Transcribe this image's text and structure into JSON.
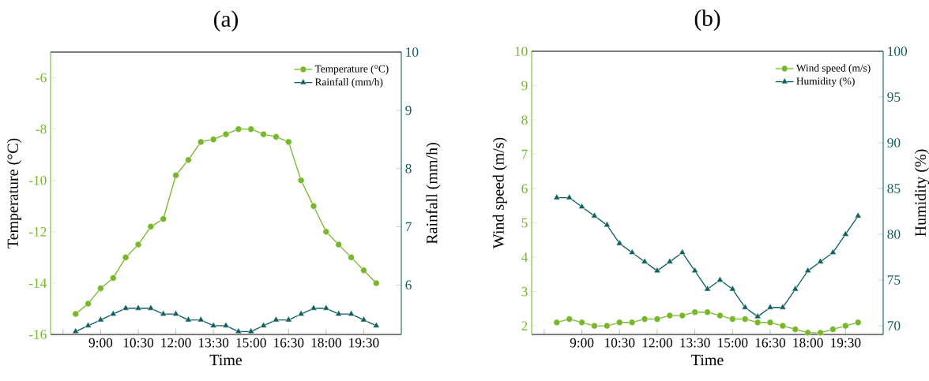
{
  "chart_data": [
    {
      "type": "line",
      "title": "(a)",
      "xlabel": "Time",
      "ylabel": "Temperature (°C)",
      "y2label": "Rainfall (mm/h)",
      "x": [
        8,
        8.5,
        9,
        9.5,
        10,
        10.5,
        11,
        11.5,
        12,
        12.5,
        13,
        13.5,
        14,
        14.5,
        15,
        15.5,
        16,
        16.5,
        17,
        17.5,
        18,
        18.5,
        19,
        19.5,
        20
      ],
      "xlim": [
        7,
        21
      ],
      "xticks": [
        {
          "value": 7.5,
          "label": null
        },
        {
          "value": 9,
          "label": "9:00"
        },
        {
          "value": 10.5,
          "label": "10:30"
        },
        {
          "value": 12,
          "label": "12:00"
        },
        {
          "value": 13.5,
          "label": "13:30"
        },
        {
          "value": 15,
          "label": "15:00"
        },
        {
          "value": 16.5,
          "label": "16:30"
        },
        {
          "value": 18,
          "label": "18:00"
        },
        {
          "value": 19.5,
          "label": "19:30"
        }
      ],
      "ylim": [
        -16,
        -5
      ],
      "yticks": [
        -16,
        -14,
        -12,
        -10,
        -8,
        -6
      ],
      "y2lim": [
        5.15,
        10
      ],
      "y2ticks": [
        6,
        7,
        8,
        9,
        10
      ],
      "legend": "top right",
      "grid": false,
      "series": [
        {
          "name": "Temperature (°C)",
          "color": "#76b82a",
          "marker": "circle",
          "values": [
            -15.2,
            -14.8,
            -14.2,
            -13.8,
            -13.0,
            -12.5,
            -11.8,
            -11.5,
            -9.8,
            -9.2,
            -8.5,
            -8.4,
            -8.2,
            -8.0,
            -8.0,
            -8.2,
            -8.3,
            -8.5,
            -10.0,
            -11.0,
            -12.0,
            -12.5,
            -13.0,
            -13.5,
            -14.0
          ]
        },
        {
          "name": "Rainfall (mm/h)",
          "color": "#0f5f5f",
          "marker": "triangle",
          "axis": "y2",
          "values": [
            5.2,
            5.3,
            5.4,
            5.5,
            5.6,
            5.6,
            5.6,
            5.5,
            5.5,
            5.4,
            5.4,
            5.3,
            5.3,
            5.2,
            5.2,
            5.3,
            5.4,
            5.4,
            5.5,
            5.6,
            5.6,
            5.5,
            5.5,
            5.4,
            5.3
          ]
        }
      ]
    },
    {
      "type": "line",
      "title": "(b)",
      "xlabel": "Time",
      "ylabel": "Wind speed (m/s)",
      "y2label": "Humidity (%)",
      "x": [
        8,
        8.5,
        9,
        9.5,
        10,
        10.5,
        11,
        11.5,
        12,
        12.5,
        13,
        13.5,
        14,
        14.5,
        15,
        15.5,
        16,
        16.5,
        17,
        17.5,
        18,
        18.5,
        19,
        19.5,
        20
      ],
      "xlim": [
        7,
        21
      ],
      "xticks": [
        {
          "value": 7.5,
          "label": null
        },
        {
          "value": 9,
          "label": "9:00"
        },
        {
          "value": 10.5,
          "label": "10:30"
        },
        {
          "value": 12,
          "label": "12:00"
        },
        {
          "value": 13.5,
          "label": "13:30"
        },
        {
          "value": 15,
          "label": "15:00"
        },
        {
          "value": 16.5,
          "label": "16:30"
        },
        {
          "value": 18,
          "label": "18:00"
        },
        {
          "value": 19.5,
          "label": "19:30"
        }
      ],
      "ylim": [
        1.75,
        10
      ],
      "yticks": [
        2,
        3,
        4,
        5,
        6,
        7,
        8,
        9,
        10
      ],
      "y2lim": [
        69.05,
        100
      ],
      "y2ticks": [
        70,
        75,
        80,
        85,
        90,
        95,
        100
      ],
      "legend": "top right",
      "grid": false,
      "series": [
        {
          "name": "Wind speed (m/s)",
          "color": "#76b82a",
          "marker": "circle",
          "values": [
            2.1,
            2.2,
            2.1,
            2.0,
            2.0,
            2.1,
            2.1,
            2.2,
            2.2,
            2.3,
            2.3,
            2.4,
            2.4,
            2.3,
            2.2,
            2.2,
            2.1,
            2.1,
            2.0,
            1.9,
            1.8,
            1.8,
            1.9,
            2.0,
            2.1
          ]
        },
        {
          "name": "Humidity (%)",
          "color": "#0f5f5f",
          "marker": "triangle",
          "axis": "y2",
          "values": [
            84,
            84,
            83,
            82,
            81,
            79,
            78,
            77,
            76,
            77,
            78,
            76,
            74,
            75,
            74,
            72,
            71,
            72,
            72,
            74,
            76,
            77,
            78,
            80,
            82
          ]
        }
      ]
    }
  ]
}
